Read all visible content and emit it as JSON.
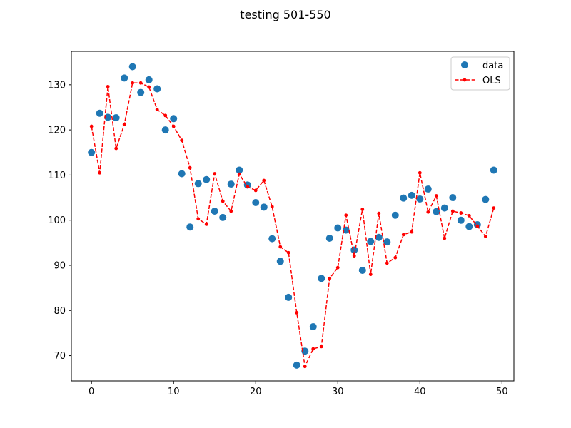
{
  "chart_data": {
    "type": "scatter",
    "title": "testing 501-550",
    "xlabel": "",
    "ylabel": "",
    "xlim": [
      -2.45,
      51.45
    ],
    "ylim": [
      64.4,
      137.4
    ],
    "xticks": [
      0,
      10,
      20,
      30,
      40,
      50
    ],
    "yticks": [
      70,
      80,
      90,
      100,
      110,
      120,
      130
    ],
    "grid": false,
    "legend_position": "top-right",
    "x": [
      0,
      1,
      2,
      3,
      4,
      5,
      6,
      7,
      8,
      9,
      10,
      11,
      12,
      13,
      14,
      15,
      16,
      17,
      18,
      19,
      20,
      21,
      22,
      23,
      24,
      25,
      26,
      27,
      28,
      29,
      30,
      31,
      32,
      33,
      34,
      35,
      36,
      37,
      38,
      39,
      40,
      41,
      42,
      43,
      44,
      45,
      46,
      47,
      48,
      49
    ],
    "series": [
      {
        "name": "data",
        "style": "markers",
        "color": "#1f77b4",
        "values": [
          115.0,
          123.7,
          122.8,
          122.7,
          131.5,
          134.0,
          128.3,
          131.1,
          129.1,
          120.0,
          122.5,
          110.3,
          98.5,
          108.1,
          109.0,
          102.0,
          100.6,
          108.0,
          111.1,
          107.8,
          103.9,
          102.9,
          95.9,
          90.9,
          82.9,
          67.9,
          71.0,
          76.4,
          87.1,
          96.0,
          98.3,
          97.8,
          93.4,
          88.9,
          95.3,
          96.2,
          95.2,
          101.1,
          104.9,
          105.5,
          104.7,
          106.9,
          101.9,
          102.7,
          105.0,
          100.0,
          98.6,
          99.0,
          104.6,
          111.1
        ]
      },
      {
        "name": "OLS",
        "style": "dashed-line-with-dots",
        "color": "#ff0000",
        "values": [
          120.8,
          110.5,
          129.6,
          115.9,
          121.2,
          130.4,
          130.4,
          129.5,
          124.5,
          123.2,
          120.8,
          117.7,
          111.6,
          100.3,
          99.1,
          110.3,
          104.2,
          102.0,
          110.2,
          107.4,
          106.6,
          108.8,
          103.0,
          94.1,
          92.8,
          79.5,
          67.6,
          71.5,
          72.0,
          87.1,
          89.5,
          101.1,
          92.1,
          102.4,
          88.0,
          101.5,
          90.5,
          91.7,
          96.8,
          97.4,
          110.5,
          101.8,
          105.4,
          96.0,
          102.0,
          101.6,
          101.0,
          98.7,
          96.4,
          102.7
        ]
      }
    ]
  }
}
